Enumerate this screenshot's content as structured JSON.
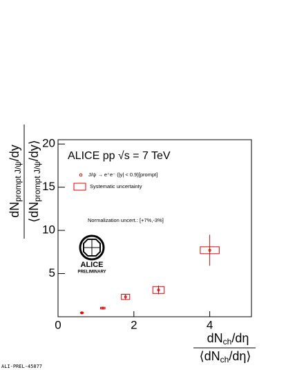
{
  "chart_data": {
    "type": "scatter",
    "y_label_numerator": [
      "dN",
      "prompt J/ψ",
      "/dy"
    ],
    "y_label_denominator": [
      "⟨dN",
      "prompt J/ψ",
      "/dy⟩"
    ],
    "x_label_numerator": [
      "dN",
      "ch",
      "/dη"
    ],
    "x_label_denominator": [
      "⟨dN",
      "ch",
      "/dη⟩"
    ],
    "title": "ALICE pp √s = 7 TeV",
    "annotations": [
      "Normalization uncert.: [+7%,-3%]",
      "ALICE",
      "PRELIMINARY",
      "ALI-PREL-45877"
    ],
    "systematic_label": "Systematic uncertainty",
    "series": [
      {
        "name": "J/ψ → e⁺e⁻ (|y| < 0.9)[prompt]",
        "color": "#e00000",
        "x": [
          0.63,
          1.18,
          1.78,
          2.65,
          4.0
        ],
        "values": [
          0.45,
          1.0,
          2.3,
          3.1,
          7.7
        ],
        "errors": [
          0.1,
          0.15,
          0.3,
          0.5,
          1.8
        ],
        "sys_x": [
          0.04,
          0.06,
          0.11,
          0.15,
          0.25
        ],
        "sys_y": [
          0.05,
          0.1,
          0.3,
          0.4,
          0.4
        ]
      }
    ],
    "xlim": [
      0,
      5.1
    ],
    "ylim": [
      0,
      20.5
    ],
    "xticks": [
      0,
      2,
      4
    ],
    "yticks": [
      5,
      10,
      15,
      20
    ]
  }
}
